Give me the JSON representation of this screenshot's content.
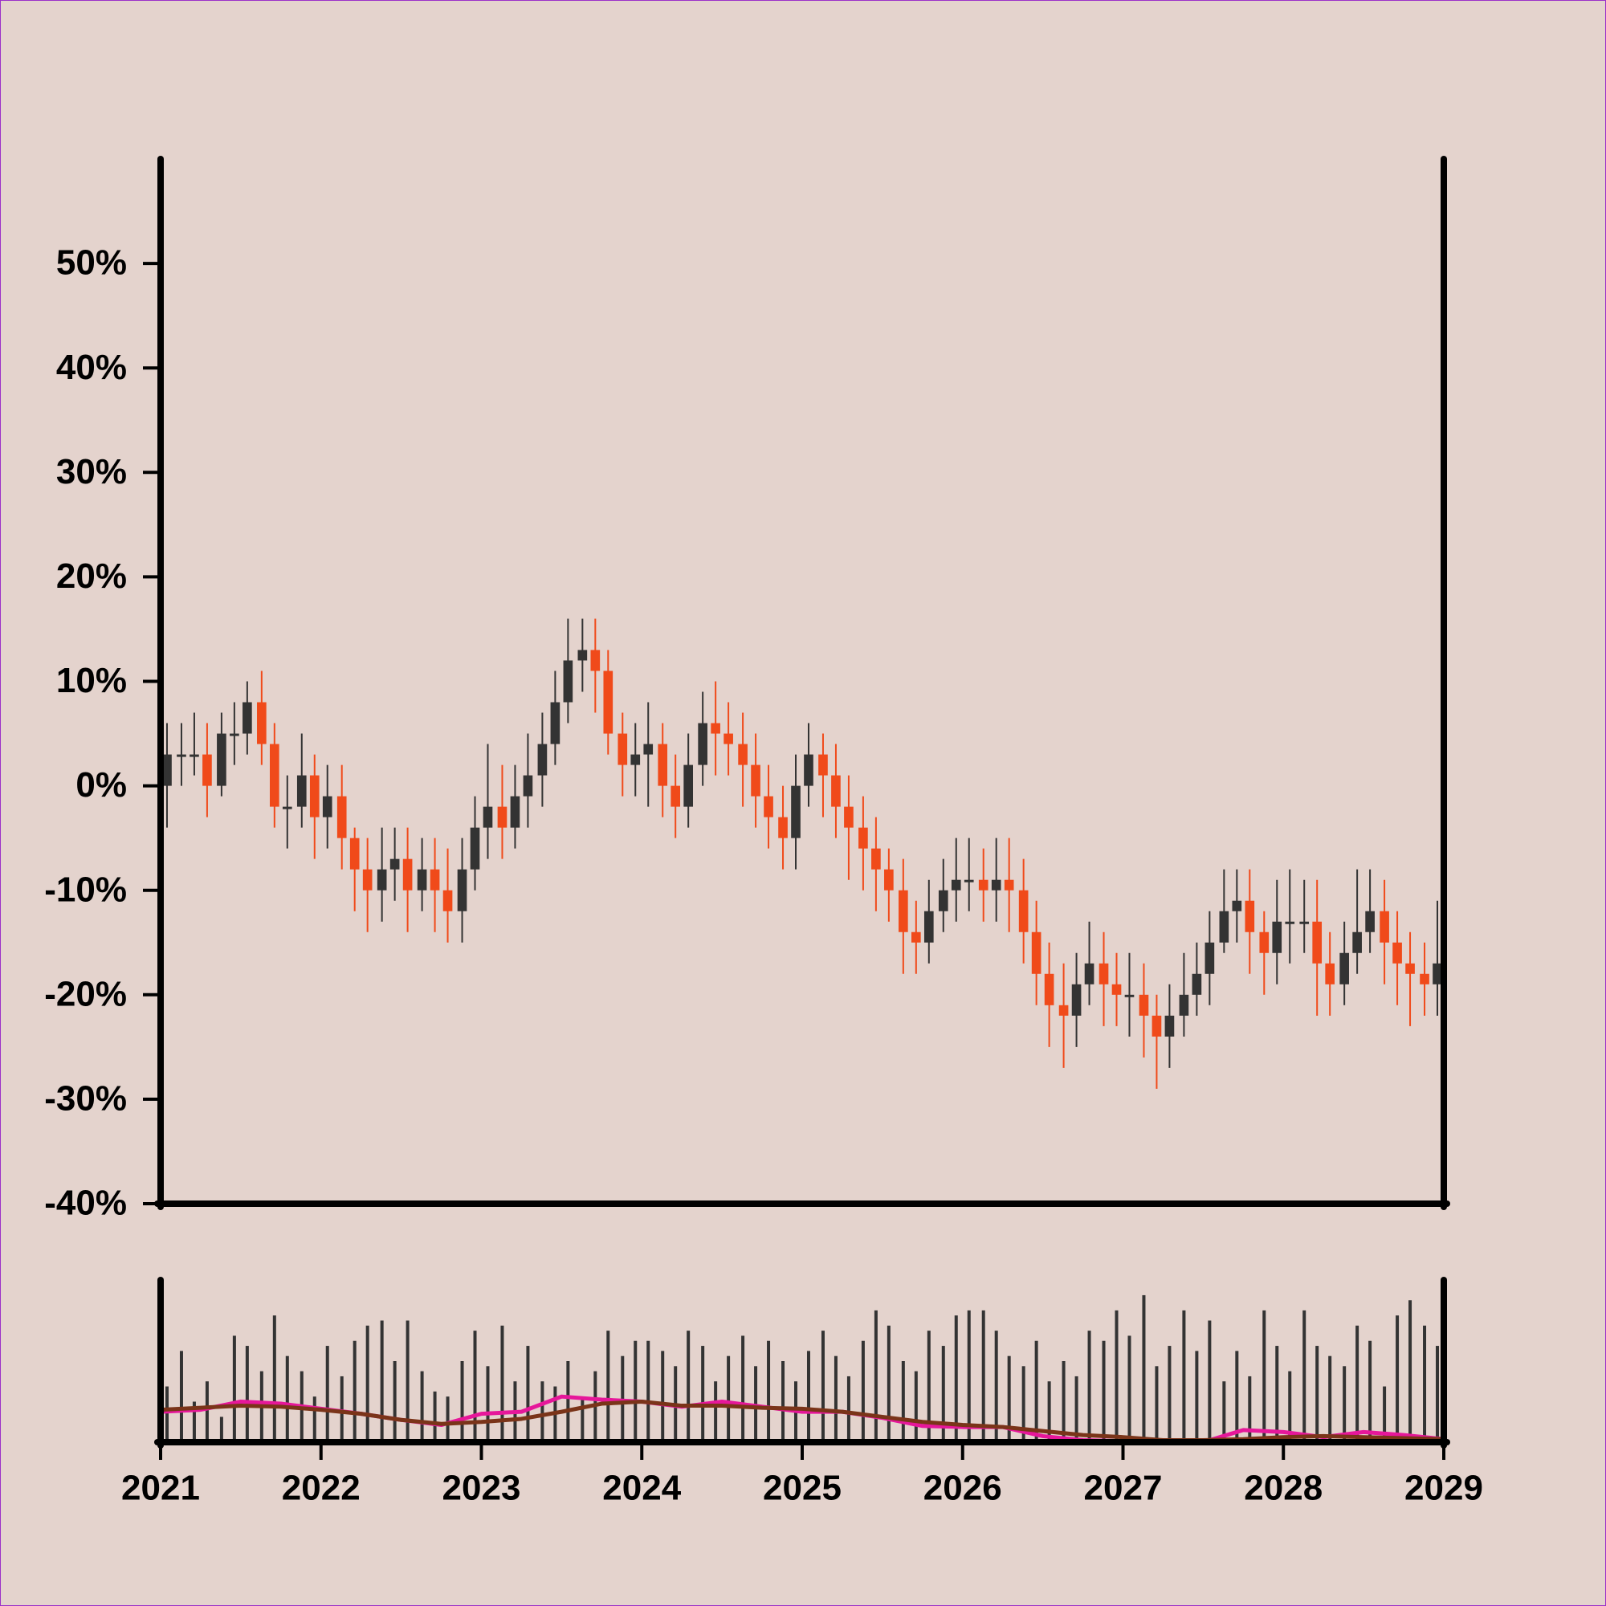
{
  "chart_data": {
    "type": "candlestick",
    "background": "#e4d3cd",
    "up_color": "#333333",
    "down_color": "#f04a1a",
    "xlim": [
      2021,
      2029
    ],
    "xticks": [
      2021,
      2022,
      2023,
      2024,
      2025,
      2026,
      2027,
      2028,
      2029
    ],
    "ylim": [
      -40,
      60
    ],
    "yticks": [
      {
        "value": -40,
        "label": "-40%"
      },
      {
        "value": -30,
        "label": "-30%"
      },
      {
        "value": -20,
        "label": "-20%"
      },
      {
        "value": -10,
        "label": "-10%"
      },
      {
        "value": 0,
        "label": "0%"
      },
      {
        "value": 10,
        "label": "10%"
      },
      {
        "value": 20,
        "label": "20%"
      },
      {
        "value": 30,
        "label": "30%"
      },
      {
        "value": 40,
        "label": "40%"
      },
      {
        "value": 50,
        "label": "50%"
      }
    ],
    "x": [
      2021.04,
      2021.13,
      2021.21,
      2021.29,
      2021.38,
      2021.46,
      2021.54,
      2021.63,
      2021.71,
      2021.79,
      2021.88,
      2021.96,
      2022.04,
      2022.13,
      2022.21,
      2022.29,
      2022.38,
      2022.46,
      2022.54,
      2022.63,
      2022.71,
      2022.79,
      2022.88,
      2022.96,
      2023.04,
      2023.13,
      2023.21,
      2023.29,
      2023.38,
      2023.46,
      2023.54,
      2023.63,
      2023.71,
      2023.79,
      2023.88,
      2023.96,
      2024.04,
      2024.13,
      2024.21,
      2024.29,
      2024.38,
      2024.46,
      2024.54,
      2024.63,
      2024.71,
      2024.79,
      2024.88,
      2024.96,
      2025.04,
      2025.13,
      2025.21,
      2025.29,
      2025.38,
      2025.46,
      2025.54,
      2025.63,
      2025.71,
      2025.79,
      2025.88,
      2025.96,
      2026.04,
      2026.13,
      2026.21,
      2026.29,
      2026.38,
      2026.46,
      2026.54,
      2026.63,
      2026.71,
      2026.79,
      2026.88,
      2026.96,
      2027.04,
      2027.13,
      2027.21,
      2027.29,
      2027.38,
      2027.46,
      2027.54,
      2027.63,
      2027.71,
      2027.79,
      2027.88,
      2027.96,
      2028.04,
      2028.13,
      2028.21,
      2028.29,
      2028.38,
      2028.46,
      2028.54,
      2028.63,
      2028.71,
      2028.79,
      2028.88,
      2028.96
    ],
    "open": [
      0,
      3,
      3,
      3,
      0,
      5,
      5,
      8,
      4,
      -2,
      -2,
      1,
      -3,
      -1,
      -5,
      -8,
      -10,
      -8,
      -7,
      -10,
      -8,
      -10,
      -12,
      -8,
      -4,
      -2,
      -4,
      -1,
      1,
      4,
      8,
      12,
      13,
      11,
      5,
      2,
      3,
      4,
      0,
      -2,
      2,
      6,
      5,
      4,
      2,
      -1,
      -3,
      -5,
      0,
      3,
      1,
      -2,
      -4,
      -6,
      -8,
      -10,
      -14,
      -15,
      -12,
      -10,
      -9,
      -9,
      -10,
      -9,
      -10,
      -14,
      -18,
      -21,
      -22,
      -19,
      -17,
      -19,
      -20,
      -20,
      -22,
      -24,
      -22,
      -20,
      -18,
      -15,
      -12,
      -11,
      -14,
      -16,
      -13,
      -13,
      -13,
      -17,
      -19,
      -16,
      -14,
      -12,
      -15,
      -17,
      -18,
      -19
    ],
    "high": [
      6,
      6,
      7,
      6,
      7,
      8,
      10,
      11,
      6,
      1,
      5,
      3,
      2,
      2,
      -4,
      -5,
      -4,
      -4,
      -4,
      -5,
      -5,
      -6,
      -5,
      -1,
      4,
      2,
      2,
      5,
      7,
      11,
      16,
      16,
      16,
      13,
      7,
      6,
      8,
      6,
      3,
      5,
      9,
      10,
      8,
      7,
      5,
      2,
      0,
      3,
      6,
      5,
      4,
      1,
      -1,
      -3,
      -6,
      -7,
      -11,
      -9,
      -7,
      -5,
      -5,
      -6,
      -5,
      -5,
      -7,
      -11,
      -15,
      -17,
      -16,
      -13,
      -14,
      -16,
      -16,
      -17,
      -20,
      -19,
      -16,
      -15,
      -12,
      -8,
      -8,
      -8,
      -12,
      -9,
      -8,
      -9,
      -9,
      -14,
      -13,
      -8,
      -8,
      -9,
      -12,
      -14,
      -15,
      -11
    ],
    "low": [
      -4,
      0,
      1,
      -3,
      -1,
      2,
      3,
      2,
      -4,
      -6,
      -4,
      -7,
      -6,
      -8,
      -12,
      -14,
      -13,
      -11,
      -14,
      -12,
      -14,
      -15,
      -15,
      -10,
      -7,
      -7,
      -6,
      -4,
      -2,
      2,
      6,
      9,
      7,
      3,
      -1,
      -1,
      -2,
      -3,
      -5,
      -4,
      0,
      1,
      1,
      -2,
      -4,
      -6,
      -8,
      -8,
      -2,
      -3,
      -5,
      -9,
      -10,
      -12,
      -13,
      -18,
      -18,
      -17,
      -14,
      -13,
      -12,
      -13,
      -13,
      -14,
      -17,
      -21,
      -25,
      -27,
      -25,
      -21,
      -23,
      -23,
      -24,
      -26,
      -29,
      -27,
      -24,
      -22,
      -21,
      -16,
      -15,
      -18,
      -20,
      -19,
      -17,
      -16,
      -22,
      -22,
      -21,
      -18,
      -16,
      -19,
      -21,
      -23,
      -22,
      -22
    ],
    "close": [
      3,
      3,
      3,
      0,
      5,
      5,
      8,
      4,
      -2,
      -2,
      1,
      -3,
      -1,
      -5,
      -8,
      -10,
      -8,
      -7,
      -10,
      -8,
      -10,
      -12,
      -8,
      -4,
      -2,
      -4,
      -1,
      1,
      4,
      8,
      12,
      13,
      11,
      5,
      2,
      3,
      4,
      0,
      -2,
      2,
      6,
      5,
      4,
      2,
      -1,
      -3,
      -5,
      0,
      3,
      1,
      -2,
      -4,
      -6,
      -8,
      -10,
      -14,
      -15,
      -12,
      -10,
      -9,
      -9,
      -10,
      -9,
      -10,
      -14,
      -18,
      -21,
      -22,
      -19,
      -17,
      -19,
      -20,
      -20,
      -22,
      -24,
      -22,
      -20,
      -18,
      -15,
      -12,
      -11,
      -14,
      -16,
      -13,
      -13,
      -13,
      -17,
      -19,
      -16,
      -14,
      -12,
      -15,
      -17,
      -18,
      -19,
      -17
    ],
    "volume": {
      "color": "#333333",
      "ylim": [
        0,
        160
      ],
      "values": [
        55,
        90,
        40,
        60,
        25,
        105,
        95,
        70,
        125,
        85,
        70,
        45,
        95,
        65,
        100,
        115,
        120,
        80,
        120,
        70,
        50,
        45,
        80,
        110,
        75,
        115,
        60,
        95,
        60,
        55,
        80,
        45,
        70,
        110,
        85,
        100,
        100,
        90,
        75,
        110,
        95,
        60,
        85,
        105,
        75,
        100,
        80,
        60,
        90,
        110,
        85,
        65,
        100,
        130,
        115,
        80,
        70,
        110,
        95,
        125,
        130,
        130,
        110,
        85,
        75,
        100,
        60,
        80,
        65,
        110,
        100,
        130,
        105,
        145,
        75,
        95,
        130,
        90,
        120,
        60,
        90,
        65,
        130,
        95,
        70,
        130,
        95,
        85,
        75,
        115,
        100,
        55,
        125,
        140,
        115,
        95
      ]
    },
    "moving_averages": {
      "x": [
        2021,
        2021.25,
        2021.5,
        2021.75,
        2022,
        2022.25,
        2022.5,
        2022.75,
        2023,
        2023.25,
        2023.5,
        2023.75,
        2024,
        2024.25,
        2024.5,
        2024.75,
        2025,
        2025.25,
        2025.5,
        2025.75,
        2026,
        2026.25,
        2026.5,
        2026.75,
        2027,
        2027.25,
        2027.5,
        2027.75,
        2028,
        2028.25,
        2028.5,
        2028.75,
        2029
      ],
      "series": [
        {
          "color": "#e6179a",
          "values": [
            30,
            32,
            40,
            38,
            33,
            28,
            22,
            17,
            28,
            30,
            45,
            42,
            40,
            35,
            40,
            35,
            30,
            30,
            24,
            16,
            15,
            15,
            6,
            2,
            1,
            0,
            0,
            12,
            10,
            5,
            10,
            7,
            3
          ]
        },
        {
          "color": "#7a3419",
          "values": [
            32,
            34,
            36,
            35,
            32,
            28,
            22,
            18,
            20,
            23,
            30,
            38,
            40,
            36,
            36,
            34,
            33,
            30,
            25,
            20,
            17,
            15,
            11,
            7,
            5,
            2,
            2,
            3,
            5,
            6,
            5,
            4,
            3
          ]
        }
      ]
    }
  }
}
